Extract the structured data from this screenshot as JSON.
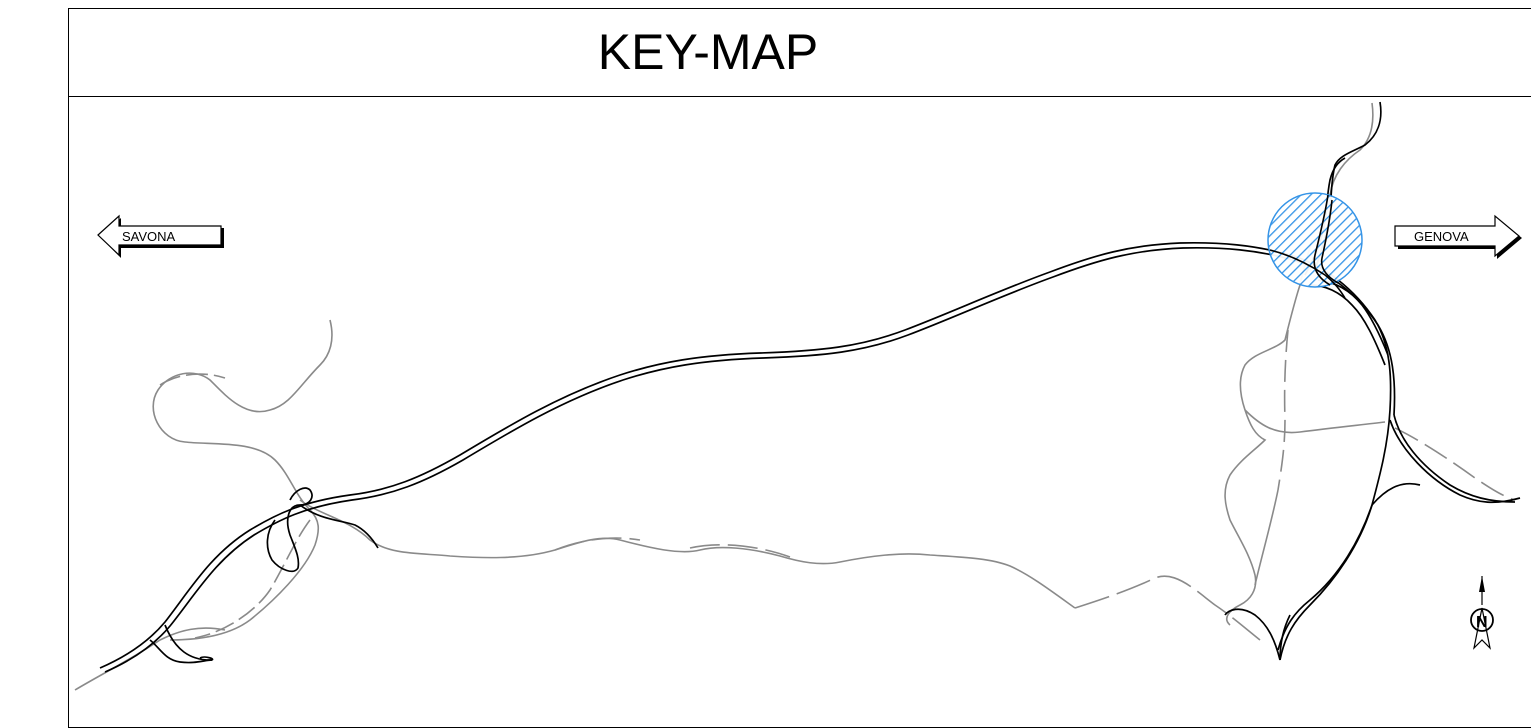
{
  "title": "KEY-MAP",
  "directions": {
    "west": "SAVONA",
    "east": "GENOVA"
  },
  "north_arrow": {
    "label": "N",
    "icon": "north-arrow-icon"
  },
  "colors": {
    "frame": "#000000",
    "main_road": "#000000",
    "secondary_road": "#8a8a8a",
    "highlight_area": "#2b8fe6"
  }
}
